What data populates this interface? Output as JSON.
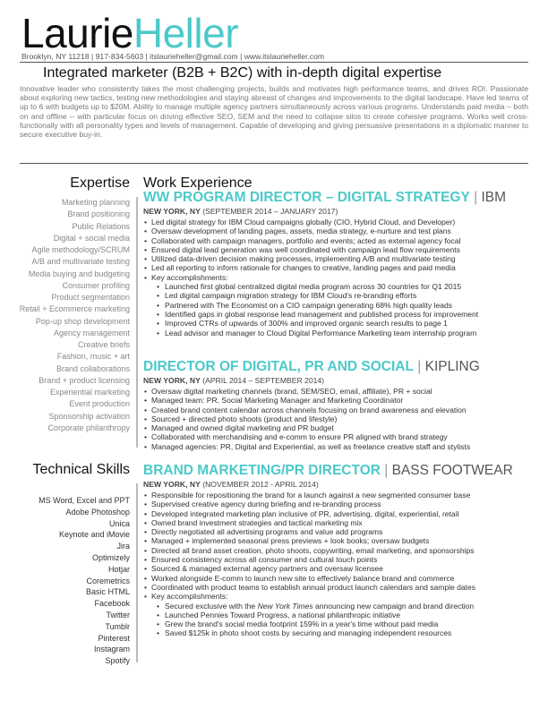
{
  "header": {
    "first_name": "Laurie",
    "last_name": "Heller",
    "contact": "Brooklyn, NY 11218 | 917-834-5603 | itslaurieheller@gmail.com | www.itslaurieheller.com",
    "headline": "Integrated marketer (B2B + B2C) with in-depth digital expertise",
    "summary": "Innovative leader who consistently takes the most challenging projects, builds and motivates high performance teams, and drives ROI. Passionate about exploring new tactics, testing new methodologies and staying abreast of changes and improvements to the digital landscape. Have led teams of up to 6 with budgets up to $20M. Ability to manage multiple agency partners simultaneously across various programs. Understands paid media – both on and offline -- with particular focus on driving effective SEO, SEM and the need to collapse silos to create cohesive programs. Works well cross-functionally with all personality types and levels of management. Capable of developing and giving persuasive presentations in a diplomatic manner to secure executive buy-in."
  },
  "expertise": {
    "title": "Expertise",
    "items": [
      "Marketing planning",
      "Brand positioning",
      "Public Relations",
      "Digital + social media",
      "Agile methodology/SCRUM",
      "A/B and multivariate testing",
      "Media buying and budgeting",
      "Consumer profiling",
      "Product segmentation",
      "Retail + Ecommerce marketing",
      "Pop-up shop development",
      "Agency management",
      "Creative briefs",
      "Fashion, music + art",
      "Brand collaborations",
      "Brand + product licensing",
      "Experiential marketing",
      "Event production",
      "Sponsorship activation",
      "Corporate philanthropy"
    ]
  },
  "technical": {
    "title": "Technical Skills",
    "items": [
      "MS Word, Excel and PPT",
      "Adobe Photoshop",
      "Unica",
      "Keynote and iMovie",
      "Jira",
      "Optimizely",
      "Hotjar",
      "Coremetrics",
      "Basic HTML",
      "Facebook",
      "Twitter",
      "Tumblr",
      "Pinterest",
      "Instagram",
      "Spotify"
    ]
  },
  "experience": {
    "title": "Work Experience",
    "jobs": [
      {
        "title": "WW PROGRAM DIRECTOR – DIGITAL STRATEGY",
        "company": "IBM",
        "location": "NEW YORK, NY",
        "dates": "(SEPTEMBER 2014 – JANUARY 2017)",
        "bullets": [
          {
            "text": "Led digital strategy for IBM Cloud campaigns globally (CIO, Hybrid Cloud, and Developer)",
            "sub": false
          },
          {
            "text": "Oversaw development of landing pages, assets, media strategy, e-nurture and test plans",
            "sub": false
          },
          {
            "text": "Collaborated with campaign managers, portfolio and events; acted as external agency focal",
            "sub": false
          },
          {
            "text": "Ensured digital lead generation was well coordinated with campaign lead flow requirements",
            "sub": false
          },
          {
            "text": "Utilized data-driven decision making processes, implementing A/B and multivariate testing",
            "sub": false
          },
          {
            "text": "Led all reporting to inform rationale for changes to creative, landing pages and paid media",
            "sub": false
          },
          {
            "text": "Key accomplishments:",
            "sub": false
          },
          {
            "text": "Launched first global centralized digital media program across 30 countries for Q1 2015",
            "sub": true
          },
          {
            "text": "Led digital campaign migration strategy for IBM Cloud's re-branding efforts",
            "sub": true
          },
          {
            "text": "Partnered with The Economist on a CIO campaign generating 68% high quality leads",
            "sub": true
          },
          {
            "text": "Identified gaps in global response lead management and published process for improvement",
            "sub": true
          },
          {
            "text": "Improved CTRs of upwards of 300% and improved organic search results to page 1",
            "sub": true
          },
          {
            "text": "Lead advisor and manager to Cloud Digital Performance Marketing team internship program",
            "sub": true
          }
        ]
      },
      {
        "title": "DIRECTOR OF DIGITAL, PR AND SOCIAL",
        "company": "KIPLING",
        "location": "NEW YORK, NY",
        "dates": "(APRIL 2014 – SEPTEMBER 2014)",
        "bullets": [
          {
            "text": "Oversaw digital marketing channels (brand, SEM/SEO, email, affiliate), PR + social",
            "sub": false
          },
          {
            "text": "Managed team: PR, Social Marketing Manager and Marketing Coordinator",
            "sub": false
          },
          {
            "text": "Created brand content calendar across channels focusing on brand awareness and elevation",
            "sub": false
          },
          {
            "text": "Sourced + directed photo shoots (product and lifestyle)",
            "sub": false
          },
          {
            "text": "Managed and owned digital marketing and PR budget",
            "sub": false
          },
          {
            "text": "Collaborated with merchandising and e-comm to ensure PR aligned with brand strategy",
            "sub": false
          },
          {
            "text": "Managed agencies: PR, Digital and Experiential, as well as freelance creative staff and stylists",
            "sub": false
          }
        ]
      },
      {
        "title": "BRAND MARKETING/PR DIRECTOR",
        "company": "BASS FOOTWEAR",
        "location": "NEW YORK, NY",
        "dates": "(NOVEMBER 2012 - APRIL 2014)",
        "bullets": [
          {
            "text": "Responsible for repositioning the brand for a launch against a new segmented consumer base",
            "sub": false
          },
          {
            "text": "Supervised creative agency during briefing and re-branding process",
            "sub": false
          },
          {
            "text": "Developed integrated marketing plan inclusive of PR, advertising, digital, experiential, retail",
            "sub": false
          },
          {
            "text": "Owned brand investment strategies and tactical marketing mix",
            "sub": false
          },
          {
            "text": "Directly negotiated all advertising programs and value add programs",
            "sub": false
          },
          {
            "text": "Managed + implemented seasonal press previews + look books; oversaw budgets",
            "sub": false
          },
          {
            "text": "Directed all brand asset creation, photo shoots, copywriting, email marketing, and sponsorships",
            "sub": false
          },
          {
            "text": "Ensured consistency across all consumer and cultural touch points",
            "sub": false
          },
          {
            "text": "Sourced & managed external agency partners and oversaw licensee",
            "sub": false
          },
          {
            "text": "Worked alongside E-comm to launch new site to effectively balance brand and commerce",
            "sub": false
          },
          {
            "text": "Coordinated with product teams to establish annual product launch calendars and sample dates",
            "sub": false
          },
          {
            "text": "Key accomplishments:",
            "sub": false
          },
          {
            "text": "Secured exclusive with the New York Times announcing new campaign and brand direction",
            "sub": true
          },
          {
            "text": "Launched Pennies Toward Progress, a national philanthropic initiative",
            "sub": true
          },
          {
            "text": "Grew the brand's social media footprint 159% in a year's time without paid media",
            "sub": true
          },
          {
            "text": "Saved $125k in photo shoot costs by securing and managing independent resources",
            "sub": true
          }
        ]
      }
    ]
  }
}
